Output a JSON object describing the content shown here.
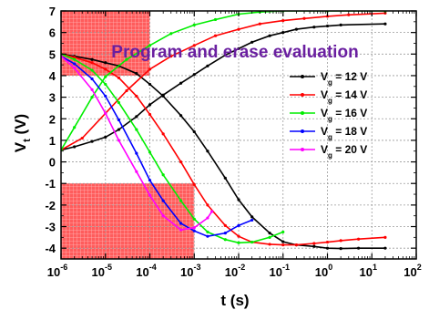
{
  "chart_data": {
    "type": "line",
    "title": "Program and erase evaluation",
    "xlabel": "t (s)",
    "ylabel": "V_t (V)",
    "x_scale": "log",
    "xlim": [
      1e-06,
      100
    ],
    "ylim": [
      -4.5,
      7
    ],
    "x_ticks": [
      {
        "value": 1e-06,
        "base": "10",
        "exp": "-6"
      },
      {
        "value": 1e-05,
        "base": "10",
        "exp": "-5"
      },
      {
        "value": 0.0001,
        "base": "10",
        "exp": "-4"
      },
      {
        "value": 0.001,
        "base": "10",
        "exp": "-3"
      },
      {
        "value": 0.01,
        "base": "10",
        "exp": "-2"
      },
      {
        "value": 0.1,
        "base": "10",
        "exp": "-1"
      },
      {
        "value": 1,
        "base": "10",
        "exp": "0"
      },
      {
        "value": 10,
        "base": "10",
        "exp": "1"
      },
      {
        "value": 100,
        "base": "10",
        "exp": "2"
      }
    ],
    "y_ticks": [
      -4,
      -3,
      -2,
      -1,
      0,
      1,
      2,
      3,
      4,
      5,
      6,
      7
    ],
    "grid": true,
    "legend_position": "right",
    "shaded_regions": [
      {
        "x": [
          1e-06,
          0.0001
        ],
        "y": [
          4,
          7
        ],
        "color": "#ff3333"
      },
      {
        "x": [
          1e-06,
          0.001
        ],
        "y": [
          -4.5,
          -1
        ],
        "color": "#ff3333"
      }
    ],
    "series": [
      {
        "name": "V_g = 12 V",
        "color": "#000000",
        "program": [
          [
            1e-06,
            0.55
          ],
          [
            2e-06,
            0.7
          ],
          [
            5e-06,
            0.95
          ],
          [
            1e-05,
            1.15
          ],
          [
            2e-05,
            1.5
          ],
          [
            5e-05,
            2.1
          ],
          [
            0.0001,
            2.65
          ],
          [
            0.0002,
            3.1
          ],
          [
            0.0005,
            3.65
          ],
          [
            0.001,
            4.05
          ],
          [
            0.002,
            4.45
          ],
          [
            0.005,
            4.95
          ],
          [
            0.01,
            5.25
          ],
          [
            0.02,
            5.55
          ],
          [
            0.05,
            5.85
          ],
          [
            0.1,
            6.0
          ],
          [
            0.2,
            6.15
          ],
          [
            0.5,
            6.25
          ],
          [
            1,
            6.3
          ],
          [
            2,
            6.35
          ],
          [
            20,
            6.4
          ]
        ],
        "erase": [
          [
            1e-06,
            5.0
          ],
          [
            2e-06,
            4.9
          ],
          [
            5e-06,
            4.75
          ],
          [
            1e-05,
            4.6
          ],
          [
            2e-05,
            4.45
          ],
          [
            5e-05,
            4.1
          ],
          [
            0.0001,
            3.6
          ],
          [
            0.0002,
            3.05
          ],
          [
            0.0005,
            2.15
          ],
          [
            0.001,
            1.4
          ],
          [
            0.002,
            0.5
          ],
          [
            0.005,
            -0.75
          ],
          [
            0.01,
            -1.75
          ],
          [
            0.02,
            -2.55
          ],
          [
            0.05,
            -3.3
          ],
          [
            0.1,
            -3.7
          ],
          [
            0.2,
            -3.85
          ],
          [
            0.5,
            -3.92
          ],
          [
            1,
            -4.0
          ],
          [
            2,
            -4.02
          ],
          [
            5,
            -4.0
          ],
          [
            20,
            -4.0
          ]
        ]
      },
      {
        "name": "V_g = 14 V",
        "color": "#ff0000",
        "program": [
          [
            1e-06,
            0.55
          ],
          [
            3e-06,
            1.1
          ],
          [
            1e-05,
            2.25
          ],
          [
            3e-05,
            3.3
          ],
          [
            0.0001,
            4.3
          ],
          [
            0.0003,
            4.9
          ],
          [
            0.001,
            5.4
          ],
          [
            0.003,
            5.85
          ],
          [
            0.01,
            6.15
          ],
          [
            0.03,
            6.4
          ],
          [
            0.1,
            6.55
          ],
          [
            0.3,
            6.65
          ],
          [
            1,
            6.75
          ],
          [
            3,
            6.82
          ],
          [
            20,
            6.9
          ]
        ],
        "erase": [
          [
            1e-06,
            5.0
          ],
          [
            2e-06,
            4.85
          ],
          [
            5e-06,
            4.6
          ],
          [
            1e-05,
            4.3
          ],
          [
            2e-05,
            3.9
          ],
          [
            5e-05,
            3.05
          ],
          [
            0.0001,
            2.2
          ],
          [
            0.0002,
            1.3
          ],
          [
            0.0005,
            0.0
          ],
          [
            0.001,
            -1.05
          ],
          [
            0.002,
            -2.0
          ],
          [
            0.005,
            -2.95
          ],
          [
            0.01,
            -3.45
          ],
          [
            0.02,
            -3.72
          ],
          [
            0.05,
            -3.82
          ],
          [
            0.1,
            -3.85
          ],
          [
            0.2,
            -3.85
          ],
          [
            0.5,
            -3.78
          ],
          [
            1,
            -3.72
          ],
          [
            2,
            -3.65
          ],
          [
            5,
            -3.58
          ],
          [
            20,
            -3.5
          ]
        ]
      },
      {
        "name": "V_g = 16 V",
        "color": "#00ee00",
        "program": [
          [
            1e-06,
            0.55
          ],
          [
            2e-06,
            1.6
          ],
          [
            5e-06,
            3.0
          ],
          [
            1e-05,
            3.95
          ],
          [
            3e-05,
            4.75
          ],
          [
            0.0001,
            5.4
          ],
          [
            0.0003,
            5.95
          ],
          [
            0.001,
            6.35
          ],
          [
            0.003,
            6.6
          ],
          [
            0.01,
            6.85
          ],
          [
            0.03,
            6.95
          ],
          [
            0.1,
            7.0
          ],
          [
            1,
            7.0
          ],
          [
            20,
            7.0
          ]
        ],
        "erase": [
          [
            1e-06,
            5.0
          ],
          [
            2e-06,
            4.75
          ],
          [
            5e-06,
            4.25
          ],
          [
            1e-05,
            3.6
          ],
          [
            2e-05,
            2.75
          ],
          [
            5e-05,
            1.5
          ],
          [
            0.0001,
            0.45
          ],
          [
            0.0002,
            -0.6
          ],
          [
            0.0005,
            -1.8
          ],
          [
            0.001,
            -2.65
          ],
          [
            0.002,
            -3.25
          ],
          [
            0.005,
            -3.6
          ],
          [
            0.01,
            -3.75
          ],
          [
            0.02,
            -3.72
          ],
          [
            0.05,
            -3.5
          ],
          [
            0.1,
            -3.25
          ]
        ]
      },
      {
        "name": "V_g = 18 V",
        "color": "#0000ff",
        "program": [],
        "erase": [
          [
            1e-06,
            4.9
          ],
          [
            2e-06,
            4.55
          ],
          [
            5e-06,
            3.85
          ],
          [
            1e-05,
            3.05
          ],
          [
            2e-05,
            1.95
          ],
          [
            5e-05,
            0.4
          ],
          [
            0.0001,
            -0.85
          ],
          [
            0.0002,
            -1.8
          ],
          [
            0.0005,
            -2.85
          ],
          [
            0.001,
            -3.2
          ],
          [
            0.002,
            -3.45
          ],
          [
            0.005,
            -3.3
          ],
          [
            0.01,
            -2.95
          ],
          [
            0.02,
            -2.7
          ]
        ]
      },
      {
        "name": "V_g = 20 V",
        "color": "#ff00ff",
        "program": [],
        "erase": [
          [
            1e-06,
            4.9
          ],
          [
            2e-06,
            4.35
          ],
          [
            5e-06,
            3.35
          ],
          [
            1e-05,
            2.25
          ],
          [
            2e-05,
            1.0
          ],
          [
            5e-05,
            -0.45
          ],
          [
            0.0001,
            -1.55
          ],
          [
            0.0002,
            -2.5
          ],
          [
            0.0005,
            -3.15
          ],
          [
            0.001,
            -3.05
          ],
          [
            0.002,
            -2.6
          ],
          [
            0.0025,
            -2.3
          ]
        ]
      }
    ],
    "legend": [
      {
        "prefix": "V",
        "sub": "g",
        "rest": " = 12 V",
        "color": "#000000"
      },
      {
        "prefix": "V",
        "sub": "g",
        "rest": " = 14 V",
        "color": "#ff0000"
      },
      {
        "prefix": "V",
        "sub": "g",
        "rest": " = 16 V",
        "color": "#00ee00"
      },
      {
        "prefix": "V",
        "sub": "g",
        "rest": " = 18 V",
        "color": "#0000ff"
      },
      {
        "prefix": "V",
        "sub": "g",
        "rest": " = 20 V",
        "color": "#ff00ff"
      }
    ],
    "title_color": "#6a1fa0",
    "ylabel_parts": {
      "main": "V",
      "sub": "t",
      "rest": " (V)"
    }
  }
}
